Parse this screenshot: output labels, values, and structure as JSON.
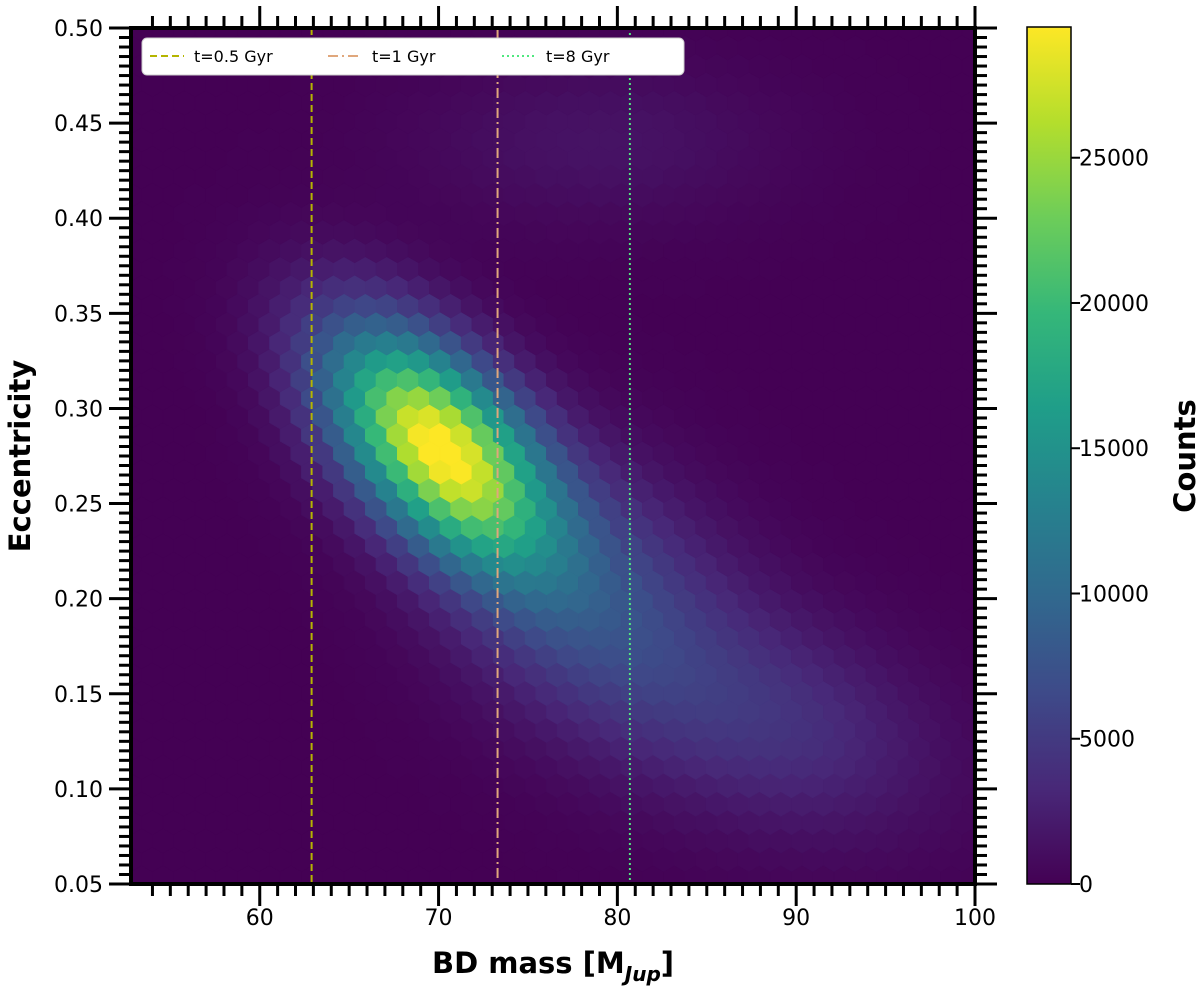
{
  "chart_data": {
    "type": "heatmap",
    "subtype": "hexbin",
    "xlabel": "BD mass [M",
    "xlabel_sub": "Jup",
    "xlabel_end": "]",
    "ylabel": "Eccentricity",
    "xlim": [
      52.8,
      100
    ],
    "ylim": [
      0.05,
      0.5
    ],
    "xticks": [
      "60",
      "70",
      "80",
      "90",
      "100"
    ],
    "yticks": [
      "0.05",
      "0.10",
      "0.15",
      "0.20",
      "0.25",
      "0.30",
      "0.35",
      "0.40",
      "0.45",
      "0.50"
    ],
    "colorbar": {
      "label": "Counts",
      "min": 0,
      "max": 29500,
      "ticks": [
        "0",
        "5000",
        "10000",
        "15000",
        "20000",
        "25000"
      ],
      "colormap": "viridis"
    },
    "density_model": {
      "components": [
        {
          "x": 70.0,
          "y": 0.28,
          "sx": 4.2,
          "sy": 0.042,
          "rho": -0.55,
          "amp": 29500
        },
        {
          "x": 78.5,
          "y": 0.2,
          "sx": 5.5,
          "sy": 0.05,
          "rho": -0.3,
          "amp": 6500
        },
        {
          "x": 89.0,
          "y": 0.135,
          "sx": 6.0,
          "sy": 0.04,
          "rho": -0.3,
          "amp": 3800
        },
        {
          "x": 79.0,
          "y": 0.44,
          "sx": 7.0,
          "sy": 0.03,
          "rho": 0.0,
          "amp": 1500
        }
      ]
    },
    "vlines": [
      {
        "label": "t=0.5 Gyr",
        "x": 62.9,
        "color": "#b5b500",
        "style": "dashed"
      },
      {
        "label": "t=1 Gyr",
        "x": 73.3,
        "color": "#e0a77c",
        "style": "dashdot"
      },
      {
        "label": "t=8 Gyr",
        "x": 80.7,
        "color": "#4fe87f",
        "style": "dotted"
      }
    ],
    "legend_position": "top-left",
    "grid": false,
    "background_color": "#440154"
  }
}
